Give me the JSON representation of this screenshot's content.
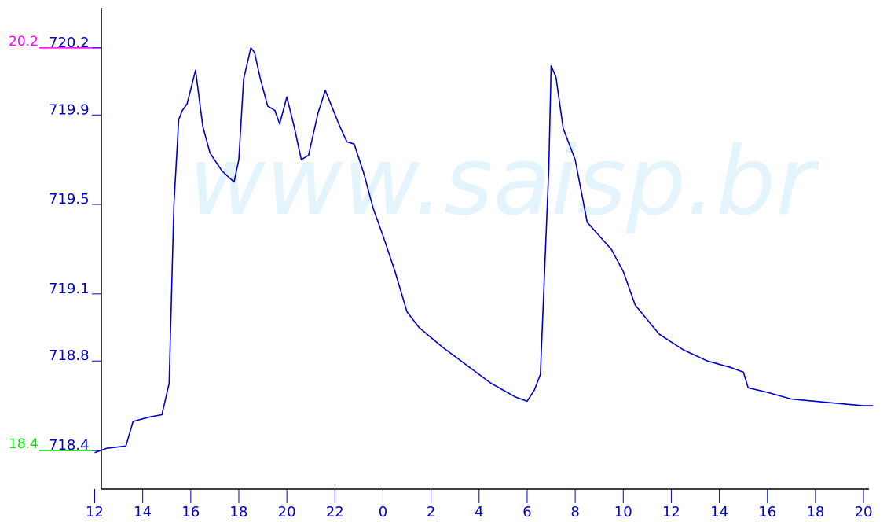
{
  "watermark": "www.saisp.br",
  "colors": {
    "series": "#0000cc",
    "axis": "#000000",
    "ref_top": "#ff00ff",
    "ref_bottom": "#00dd00",
    "watermark": "#e4f4fd"
  },
  "ref_lines": {
    "top": {
      "label": "20.2",
      "value": 720.2
    },
    "bottom": {
      "label": "18.4",
      "value": 718.4
    }
  },
  "chart_data": {
    "type": "line",
    "title": "",
    "xlabel": "",
    "ylabel": "",
    "ylim": [
      718.2,
      720.36
    ],
    "xlim": [
      0,
      32.4
    ],
    "x_unit": "hours elapsed from 12",
    "yticks": [
      {
        "value": 718.4,
        "label": "718.4"
      },
      {
        "value": 718.8,
        "label": "718.8"
      },
      {
        "value": 719.1,
        "label": "719.1"
      },
      {
        "value": 719.5,
        "label": "719.5"
      },
      {
        "value": 719.9,
        "label": "719.9"
      },
      {
        "value": 720.2,
        "label": "720.2"
      }
    ],
    "xticks": [
      {
        "value": 0,
        "label": "12"
      },
      {
        "value": 2,
        "label": "14"
      },
      {
        "value": 4,
        "label": "16"
      },
      {
        "value": 6,
        "label": "18"
      },
      {
        "value": 8,
        "label": "20"
      },
      {
        "value": 10,
        "label": "22"
      },
      {
        "value": 12,
        "label": "0"
      },
      {
        "value": 14,
        "label": "2"
      },
      {
        "value": 16,
        "label": "4"
      },
      {
        "value": 18,
        "label": "6"
      },
      {
        "value": 20,
        "label": "8"
      },
      {
        "value": 22,
        "label": "10"
      },
      {
        "value": 24,
        "label": "12"
      },
      {
        "value": 26,
        "label": "14"
      },
      {
        "value": 28,
        "label": "16"
      },
      {
        "value": 30,
        "label": "18"
      },
      {
        "value": 32,
        "label": "20"
      }
    ],
    "series": [
      {
        "x": [
          0.0,
          0.5,
          1.3,
          1.6,
          2.3,
          2.8,
          3.1,
          3.3,
          3.5,
          3.65,
          3.85,
          4.2,
          4.5,
          4.8,
          5.3,
          5.8,
          6.0,
          6.2,
          6.5,
          6.65,
          6.9,
          7.2,
          7.5,
          7.7,
          8.0,
          8.3,
          8.6,
          8.9,
          9.3,
          9.6,
          9.9,
          10.2,
          10.5,
          10.8,
          11.2,
          11.6,
          12.0,
          12.5,
          13.0,
          13.5,
          14.5,
          15.5,
          16.5,
          17.5,
          18.0,
          18.3,
          18.55,
          18.9,
          19.0,
          19.2,
          19.5,
          20.0,
          20.5,
          21.5,
          22.0,
          22.5,
          23.5,
          24.5,
          25.5,
          26.5,
          27.0,
          27.2,
          28.0,
          29.0,
          30.0,
          31.0,
          32.0,
          32.4
        ],
        "y": [
          718.39,
          718.41,
          718.42,
          718.53,
          718.55,
          718.56,
          718.7,
          719.5,
          719.88,
          719.92,
          719.95,
          720.1,
          719.85,
          719.73,
          719.65,
          719.6,
          719.7,
          720.06,
          720.2,
          720.18,
          720.06,
          719.94,
          719.92,
          719.86,
          719.98,
          719.85,
          719.7,
          719.72,
          719.91,
          720.01,
          719.93,
          719.85,
          719.78,
          719.77,
          719.64,
          719.48,
          719.36,
          719.2,
          719.02,
          718.95,
          718.86,
          718.78,
          718.7,
          718.64,
          718.62,
          718.67,
          718.74,
          719.66,
          720.12,
          720.07,
          719.84,
          719.7,
          719.42,
          719.3,
          719.2,
          719.05,
          718.92,
          718.85,
          718.8,
          718.77,
          718.75,
          718.68,
          718.66,
          718.63,
          718.62,
          718.61,
          718.6,
          718.6
        ]
      }
    ],
    "grid": false,
    "legend": "none"
  }
}
